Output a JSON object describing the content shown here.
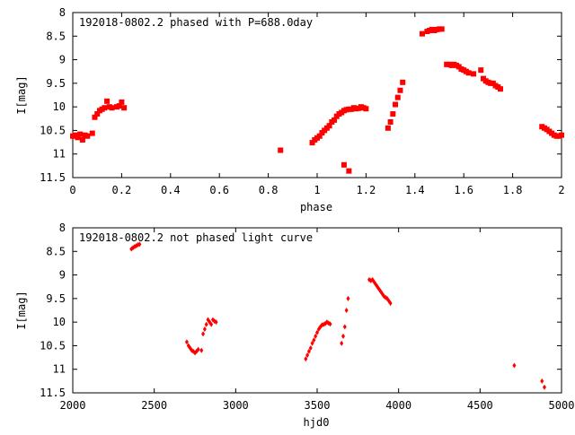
{
  "chart_data": [
    {
      "type": "scatter",
      "title": "192018-0802.2 phased with P=688.0day",
      "xlabel": "phase",
      "ylabel": "I[mag]",
      "xlim": [
        0,
        2
      ],
      "ylim": [
        11.5,
        8
      ],
      "y_inverted": true,
      "xticks": [
        "0",
        "0.2",
        "0.4",
        "0.6",
        "0.8",
        "1",
        "1.2",
        "1.4",
        "1.6",
        "1.8",
        "2"
      ],
      "yticks": [
        "8",
        "8.5",
        "9",
        "9.5",
        "10",
        "10.5",
        "11",
        "11.5"
      ],
      "grid": false,
      "legend": "none",
      "marker_color": "#ff0000",
      "series": [
        {
          "x": [
            0.0,
            0.01,
            0.02,
            0.03,
            0.04,
            0.05,
            0.06,
            0.08,
            0.09,
            0.1,
            0.11,
            0.12,
            0.13,
            0.14,
            0.15,
            0.16,
            0.18,
            0.19,
            0.2,
            0.21,
            0.85,
            0.98,
            0.99,
            1.0,
            1.01,
            1.02,
            1.03,
            1.04,
            1.05,
            1.06,
            1.07,
            1.08,
            1.09,
            1.1,
            1.11,
            1.12,
            1.13,
            1.14,
            1.15,
            1.16,
            1.17,
            1.18,
            1.19,
            1.2,
            1.11,
            1.13,
            1.29,
            1.3,
            1.31,
            1.32,
            1.33,
            1.34,
            1.35,
            1.43,
            1.45,
            1.46,
            1.47,
            1.48,
            1.49,
            1.5,
            1.51,
            1.53,
            1.54,
            1.55,
            1.56,
            1.57,
            1.58,
            1.59,
            1.6,
            1.61,
            1.62,
            1.64,
            1.67,
            1.68,
            1.69,
            1.7,
            1.71,
            1.72,
            1.73,
            1.74,
            1.75,
            1.92,
            1.93,
            1.94,
            1.95,
            1.96,
            1.97,
            1.98,
            1.99,
            2.0
          ],
          "y": [
            10.62,
            10.6,
            10.65,
            10.58,
            10.7,
            10.6,
            10.62,
            10.56,
            10.22,
            10.15,
            10.08,
            10.05,
            10.02,
            9.88,
            10.0,
            10.02,
            10.0,
            9.98,
            9.9,
            10.02,
            10.92,
            10.76,
            10.7,
            10.66,
            10.62,
            10.55,
            10.5,
            10.45,
            10.4,
            10.32,
            10.28,
            10.2,
            10.15,
            10.12,
            10.08,
            10.06,
            10.05,
            10.05,
            10.02,
            10.04,
            10.03,
            10.0,
            10.02,
            10.04,
            11.23,
            11.36,
            10.45,
            10.32,
            10.15,
            9.95,
            9.8,
            9.65,
            9.48,
            8.45,
            8.4,
            8.38,
            8.36,
            8.38,
            8.36,
            8.35,
            8.35,
            9.1,
            9.1,
            9.12,
            9.1,
            9.12,
            9.15,
            9.2,
            9.22,
            9.25,
            9.28,
            9.3,
            9.22,
            9.4,
            9.45,
            9.48,
            9.5,
            9.5,
            9.55,
            9.58,
            9.62,
            10.42,
            10.45,
            10.48,
            10.52,
            10.56,
            10.6,
            10.62,
            10.62,
            10.6
          ]
        }
      ]
    },
    {
      "type": "scatter",
      "title": "192018-0802.2 not phased light curve",
      "xlabel": "hjd0",
      "ylabel": "I[mag]",
      "xlim": [
        2000,
        5000
      ],
      "ylim": [
        11.5,
        8
      ],
      "y_inverted": true,
      "xticks": [
        "2000",
        "2500",
        "3000",
        "3500",
        "4000",
        "4500",
        "5000"
      ],
      "yticks": [
        "8",
        "8.5",
        "9",
        "9.5",
        "10",
        "10.5",
        "11",
        "11.5"
      ],
      "grid": false,
      "legend": "none",
      "marker_color": "#ff0000",
      "series": [
        {
          "x": [
            2360,
            2370,
            2380,
            2390,
            2400,
            2410,
            2700,
            2710,
            2720,
            2730,
            2740,
            2750,
            2760,
            2770,
            2790,
            2800,
            2810,
            2820,
            2830,
            2840,
            2850,
            2860,
            2870,
            2880,
            3430,
            3440,
            3450,
            3460,
            3470,
            3480,
            3490,
            3500,
            3510,
            3520,
            3530,
            3540,
            3550,
            3560,
            3570,
            3580,
            3650,
            3660,
            3670,
            3680,
            3690,
            3820,
            3830,
            3840,
            3850,
            3860,
            3870,
            3880,
            3890,
            3900,
            3910,
            3920,
            3930,
            3940,
            3950,
            4710,
            4880,
            4895
          ],
          "y": [
            8.45,
            8.42,
            8.4,
            8.38,
            8.36,
            8.35,
            10.42,
            10.5,
            10.55,
            10.6,
            10.62,
            10.65,
            10.62,
            10.58,
            10.6,
            10.25,
            10.15,
            10.05,
            9.95,
            10.0,
            10.05,
            9.95,
            9.98,
            10.0,
            10.78,
            10.7,
            10.62,
            10.55,
            10.45,
            10.38,
            10.3,
            10.22,
            10.15,
            10.1,
            10.06,
            10.05,
            10.03,
            10.0,
            10.02,
            10.04,
            10.45,
            10.3,
            10.1,
            9.75,
            9.5,
            9.1,
            9.12,
            9.1,
            9.15,
            9.2,
            9.25,
            9.3,
            9.35,
            9.4,
            9.45,
            9.48,
            9.5,
            9.55,
            9.6,
            10.92,
            11.25,
            11.38
          ]
        }
      ]
    }
  ]
}
